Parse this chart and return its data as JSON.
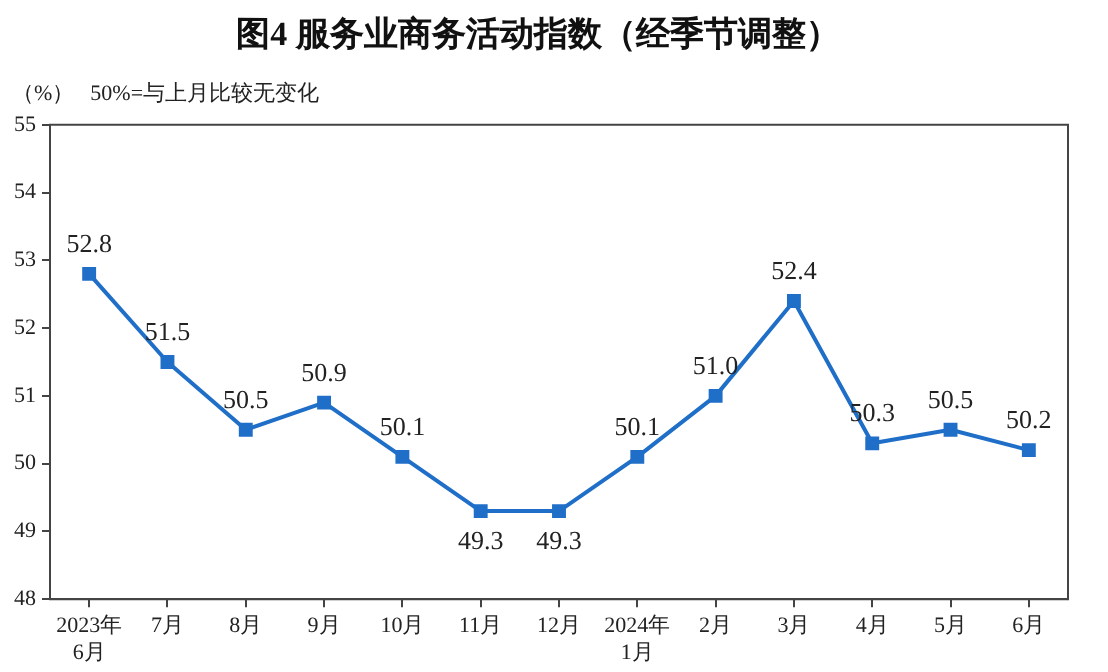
{
  "chart_data": {
    "type": "line",
    "title": "图4 服务业商务活动指数（经季节调整）",
    "ylabel": "（%）",
    "annotations": [
      "50%=与上月比较无变化"
    ],
    "categories": [
      "2023年\n6月",
      "7月",
      "8月",
      "9月",
      "10月",
      "11月",
      "12月",
      "2024年\n1月",
      "2月",
      "3月",
      "4月",
      "5月",
      "6月"
    ],
    "series": [
      {
        "color": "#1f6fc8",
        "values": [
          52.8,
          51.5,
          50.5,
          50.9,
          50.1,
          49.3,
          49.3,
          50.1,
          51.0,
          52.4,
          50.3,
          50.5,
          50.2
        ],
        "value_labels": [
          "52.8",
          "51.5",
          "50.5",
          "50.9",
          "50.1",
          "49.3",
          "49.3",
          "50.1",
          "51.0",
          "52.4",
          "50.3",
          "50.5",
          "50.2"
        ]
      }
    ],
    "ylim": [
      48,
      55
    ],
    "yticks": [
      48,
      49,
      50,
      51,
      52,
      53,
      54,
      55
    ],
    "grid": false,
    "legend": false,
    "marker": "square",
    "line_style": "solid",
    "data_labels": true
  }
}
